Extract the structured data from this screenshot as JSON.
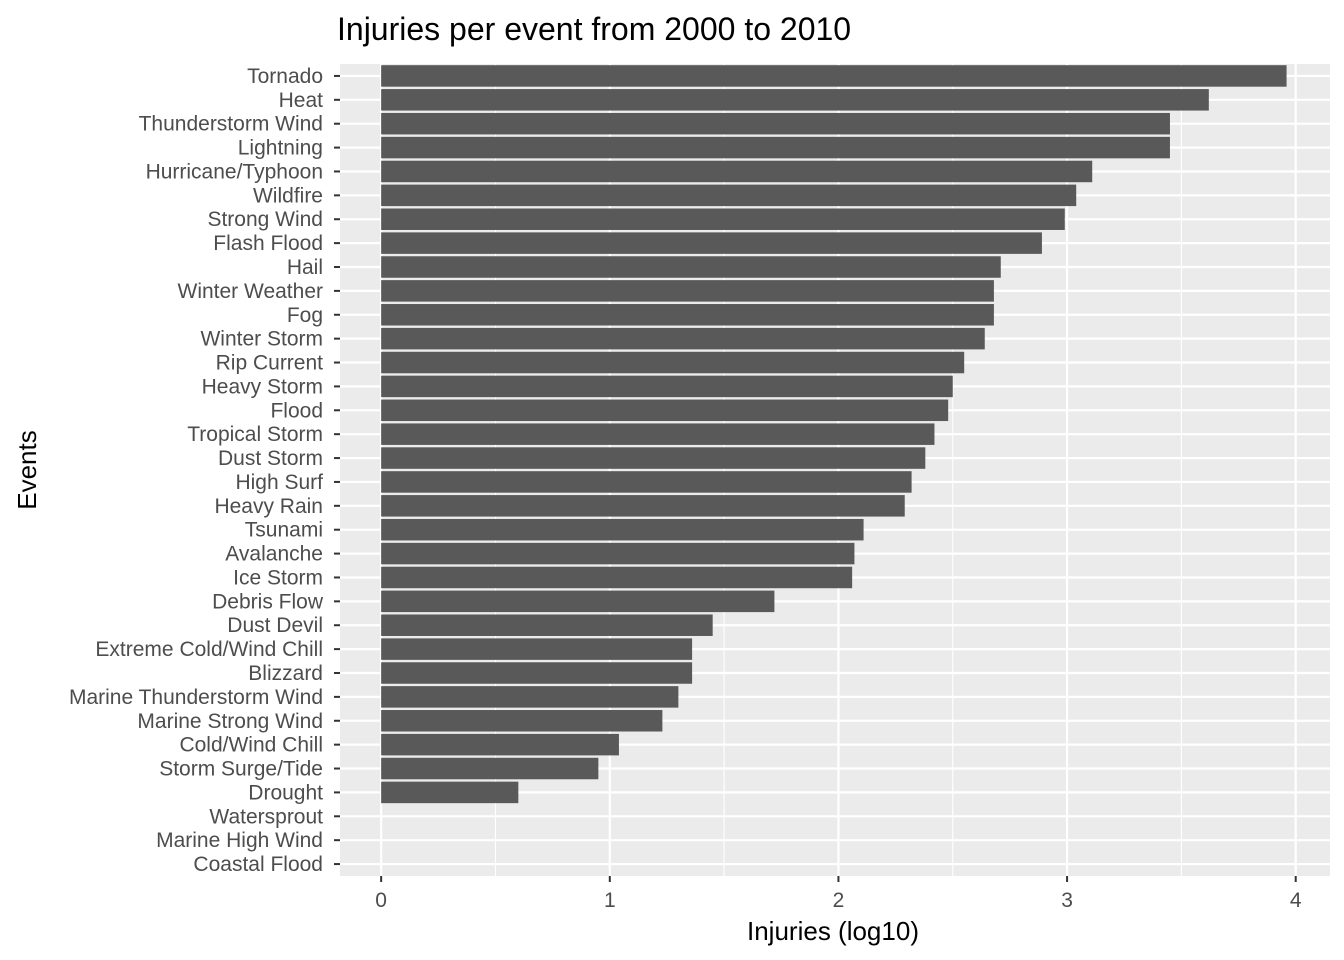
{
  "chart_data": {
    "type": "bar",
    "orientation": "horizontal",
    "title": "Injuries per event from 2000 to 2010",
    "xlabel": "Injuries (log10)",
    "ylabel": "Events",
    "xlim": [
      -0.18,
      4.15
    ],
    "x_ticks": [
      0,
      1,
      2,
      3,
      4
    ],
    "grid": true,
    "bar_color": "#595959",
    "panel_color": "#ebebeb",
    "categories": [
      "Tornado",
      "Heat",
      "Thunderstorm Wind",
      "Lightning",
      "Hurricane/Typhoon",
      "Wildfire",
      "Strong Wind",
      "Flash Flood",
      "Hail",
      "Winter Weather",
      "Fog",
      "Winter Storm",
      "Rip Current",
      "Heavy Storm",
      "Flood",
      "Tropical Storm",
      "Dust Storm",
      "High Surf",
      "Heavy Rain",
      "Tsunami",
      "Avalanche",
      "Ice Storm",
      "Debris Flow",
      "Dust Devil",
      "Extreme Cold/Wind Chill",
      "Blizzard",
      "Marine Thunderstorm Wind",
      "Marine Strong Wind",
      "Cold/Wind Chill",
      "Storm Surge/Tide",
      "Drought",
      "Watersprout",
      "Marine High Wind",
      "Coastal Flood"
    ],
    "values": [
      3.96,
      3.62,
      3.45,
      3.45,
      3.11,
      3.04,
      2.99,
      2.89,
      2.71,
      2.68,
      2.68,
      2.64,
      2.55,
      2.5,
      2.48,
      2.42,
      2.38,
      2.32,
      2.29,
      2.11,
      2.07,
      2.06,
      1.72,
      1.45,
      1.36,
      1.36,
      1.3,
      1.23,
      1.04,
      0.95,
      0.6,
      0,
      0,
      0
    ]
  }
}
